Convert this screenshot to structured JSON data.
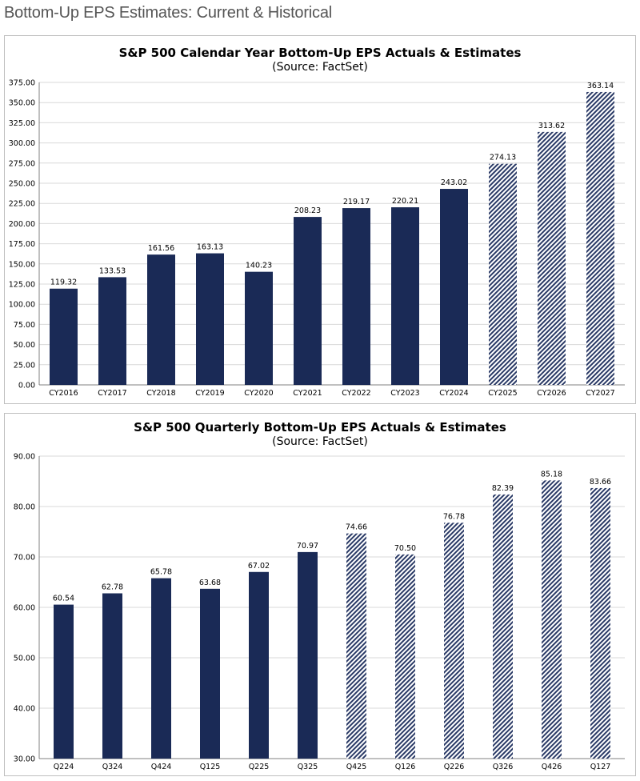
{
  "page": {
    "title": "Bottom-Up EPS Estimates: Current & Historical"
  },
  "colors": {
    "actual": "#1a2a56",
    "estimate_hatch": "#2a3a66",
    "grid": "#d9d9d9"
  },
  "chart_data": [
    {
      "type": "bar",
      "title": "S&P 500 Calendar Year Bottom-Up EPS Actuals & Estimates",
      "subtitle": "(Source: FactSet)",
      "categories": [
        "CY2016",
        "CY2017",
        "CY2018",
        "CY2019",
        "CY2020",
        "CY2021",
        "CY2022",
        "CY2023",
        "CY2024",
        "CY2025",
        "CY2026",
        "CY2027"
      ],
      "values": [
        119.32,
        133.53,
        161.56,
        163.13,
        140.23,
        208.23,
        219.17,
        220.21,
        243.02,
        274.13,
        313.62,
        363.14
      ],
      "value_labels": [
        "119.32",
        "133.53",
        "161.56",
        "163.13",
        "140.23",
        "208.23",
        "219.17",
        "220.21",
        "243.02",
        "274.13",
        "313.62",
        "363.14"
      ],
      "estimate": [
        false,
        false,
        false,
        false,
        false,
        false,
        false,
        false,
        false,
        true,
        true,
        true
      ],
      "ylim": [
        0,
        375
      ],
      "yticks": [
        "0.00",
        "25.00",
        "50.00",
        "75.00",
        "100.00",
        "125.00",
        "150.00",
        "175.00",
        "200.00",
        "225.00",
        "250.00",
        "275.00",
        "300.00",
        "325.00",
        "350.00",
        "375.00"
      ],
      "grid": true
    },
    {
      "type": "bar",
      "title": "S&P 500 Quarterly Bottom-Up EPS Actuals & Estimates",
      "subtitle": "(Source: FactSet)",
      "categories": [
        "Q224",
        "Q324",
        "Q424",
        "Q125",
        "Q225",
        "Q325",
        "Q425",
        "Q126",
        "Q226",
        "Q326",
        "Q426",
        "Q127"
      ],
      "values": [
        60.54,
        62.78,
        65.78,
        63.68,
        67.02,
        70.97,
        74.66,
        70.5,
        76.78,
        82.39,
        85.18,
        83.66
      ],
      "value_labels": [
        "60.54",
        "62.78",
        "65.78",
        "63.68",
        "67.02",
        "70.97",
        "74.66",
        "70.50",
        "76.78",
        "82.39",
        "85.18",
        "83.66"
      ],
      "estimate": [
        false,
        false,
        false,
        false,
        false,
        false,
        true,
        true,
        true,
        true,
        true,
        true
      ],
      "ylim": [
        30,
        90
      ],
      "yticks": [
        "30.00",
        "40.00",
        "50.00",
        "60.00",
        "70.00",
        "80.00",
        "90.00"
      ],
      "grid": true
    }
  ]
}
